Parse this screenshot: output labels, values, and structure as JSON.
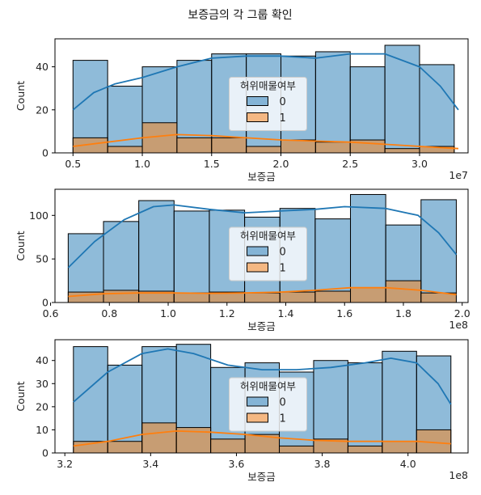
{
  "figure": {
    "suptitle": "보증금의 각 그룹 확인"
  },
  "chart_data": [
    {
      "type": "bar",
      "subtype": "histogram-with-kde",
      "xlabel": "보증금",
      "ylabel": "Count",
      "x_offset_label": "1e7",
      "bin_edges": [
        0.5,
        0.75,
        1.0,
        1.25,
        1.5,
        1.75,
        2.0,
        2.25,
        2.5,
        2.75,
        3.0,
        3.25
      ],
      "xlim": [
        0.37,
        3.35
      ],
      "ylim": [
        0,
        53
      ],
      "xticks": [
        0.5,
        1.0,
        1.5,
        2.0,
        2.5,
        3.0
      ],
      "xtick_labels": [
        "0.5",
        "1.0",
        "1.5",
        "2.0",
        "2.5",
        "3.0"
      ],
      "yticks": [
        0,
        20,
        40
      ],
      "yticklabels": [
        "0",
        "20",
        "40"
      ],
      "legend": {
        "title": "허위매물여부",
        "position": "center",
        "entries": [
          "0",
          "1"
        ]
      },
      "series": [
        {
          "name": "0",
          "color": "#1f77b4",
          "values": [
            43,
            31,
            40,
            43,
            46,
            46,
            45,
            47,
            40,
            50,
            41
          ],
          "kde": [
            [
              0.5,
              20
            ],
            [
              0.65,
              28
            ],
            [
              0.8,
              32
            ],
            [
              1.0,
              35
            ],
            [
              1.25,
              40
            ],
            [
              1.5,
              44
            ],
            [
              1.75,
              45
            ],
            [
              2.0,
              45
            ],
            [
              2.25,
              44
            ],
            [
              2.5,
              46
            ],
            [
              2.75,
              46
            ],
            [
              3.0,
              40
            ],
            [
              3.15,
              31
            ],
            [
              3.28,
              20
            ]
          ]
        },
        {
          "name": "1",
          "color": "#ff7f0e",
          "values": [
            7,
            3,
            14,
            7,
            7,
            3,
            6,
            5,
            6,
            2,
            3
          ],
          "kde": [
            [
              0.5,
              3
            ],
            [
              0.75,
              5
            ],
            [
              1.0,
              7
            ],
            [
              1.25,
              8.5
            ],
            [
              1.5,
              8
            ],
            [
              1.75,
              7
            ],
            [
              2.0,
              6
            ],
            [
              2.25,
              5.5
            ],
            [
              2.5,
              5
            ],
            [
              2.75,
              4
            ],
            [
              3.0,
              3
            ],
            [
              3.28,
              2
            ]
          ]
        }
      ]
    },
    {
      "type": "bar",
      "subtype": "histogram-with-kde",
      "xlabel": "보증금",
      "ylabel": "Count",
      "x_offset_label": "1e8",
      "bin_edges": [
        0.66,
        0.78,
        0.9,
        1.02,
        1.14,
        1.26,
        1.38,
        1.5,
        1.62,
        1.74,
        1.86,
        1.98
      ],
      "xlim": [
        0.615,
        2.02
      ],
      "ylim": [
        0,
        130
      ],
      "xticks": [
        0.6,
        0.8,
        1.0,
        1.2,
        1.4,
        1.6,
        1.8,
        2.0
      ],
      "xtick_labels": [
        "0.6",
        "0.8",
        "1.0",
        "1.2",
        "1.4",
        "1.6",
        "1.8",
        "2.0"
      ],
      "yticks": [
        0,
        50,
        100
      ],
      "yticklabels": [
        "0",
        "50",
        "100"
      ],
      "legend": {
        "title": "허위매물여부",
        "position": "center",
        "entries": [
          "0",
          "1"
        ]
      },
      "series": [
        {
          "name": "0",
          "color": "#1f77b4",
          "values": [
            79,
            93,
            117,
            105,
            106,
            98,
            108,
            96,
            124,
            89,
            118
          ],
          "kde": [
            [
              0.66,
              40
            ],
            [
              0.75,
              70
            ],
            [
              0.85,
              95
            ],
            [
              0.95,
              110
            ],
            [
              1.02,
              112
            ],
            [
              1.14,
              107
            ],
            [
              1.26,
              103
            ],
            [
              1.38,
              105
            ],
            [
              1.5,
              107
            ],
            [
              1.6,
              110
            ],
            [
              1.74,
              108
            ],
            [
              1.85,
              100
            ],
            [
              1.92,
              80
            ],
            [
              1.98,
              55
            ]
          ]
        },
        {
          "name": "1",
          "color": "#ff7f0e",
          "values": [
            12,
            14,
            13,
            11,
            12,
            11,
            12,
            13,
            17,
            25,
            11
          ],
          "kde": [
            [
              0.66,
              7
            ],
            [
              0.78,
              10
            ],
            [
              0.9,
              11
            ],
            [
              1.02,
              11
            ],
            [
              1.14,
              10.5
            ],
            [
              1.26,
              11
            ],
            [
              1.38,
              12
            ],
            [
              1.5,
              14
            ],
            [
              1.62,
              17
            ],
            [
              1.74,
              17
            ],
            [
              1.86,
              14
            ],
            [
              1.98,
              9
            ]
          ]
        }
      ]
    },
    {
      "type": "bar",
      "subtype": "histogram-with-kde",
      "xlabel": "보증금",
      "ylabel": "Count",
      "x_offset_label": "1e8",
      "bin_edges": [
        3.22,
        3.3,
        3.38,
        3.46,
        3.54,
        3.62,
        3.7,
        3.78,
        3.86,
        3.94,
        4.02,
        4.1
      ],
      "xlim": [
        3.177,
        4.14
      ],
      "ylim": [
        0,
        49
      ],
      "xticks": [
        3.2,
        3.4,
        3.6,
        3.8,
        4.0
      ],
      "xtick_labels": [
        "3.2",
        "3.4",
        "3.6",
        "3.8",
        "4.0"
      ],
      "yticks": [
        0,
        10,
        20,
        30,
        40
      ],
      "yticklabels": [
        "0",
        "10",
        "20",
        "30",
        "40"
      ],
      "legend": {
        "title": "허위매물여부",
        "position": "center",
        "entries": [
          "0",
          "1"
        ]
      },
      "series": [
        {
          "name": "0",
          "color": "#1f77b4",
          "values": [
            46,
            38,
            46,
            47,
            37,
            39,
            35,
            40,
            39,
            44,
            42
          ],
          "kde": [
            [
              3.22,
              22
            ],
            [
              3.3,
              35
            ],
            [
              3.38,
              43
            ],
            [
              3.44,
              45
            ],
            [
              3.5,
              43
            ],
            [
              3.58,
              38
            ],
            [
              3.66,
              36
            ],
            [
              3.74,
              36
            ],
            [
              3.82,
              37
            ],
            [
              3.9,
              39
            ],
            [
              3.96,
              41
            ],
            [
              4.02,
              39
            ],
            [
              4.07,
              30
            ],
            [
              4.1,
              21
            ]
          ]
        },
        {
          "name": "1",
          "color": "#ff7f0e",
          "values": [
            5,
            5,
            13,
            11,
            6,
            8,
            3,
            6,
            3,
            5,
            10
          ],
          "kde": [
            [
              3.22,
              3
            ],
            [
              3.3,
              5
            ],
            [
              3.38,
              8
            ],
            [
              3.46,
              9.5
            ],
            [
              3.54,
              9
            ],
            [
              3.62,
              8
            ],
            [
              3.7,
              6.5
            ],
            [
              3.78,
              5.5
            ],
            [
              3.86,
              5
            ],
            [
              3.94,
              5
            ],
            [
              4.02,
              5
            ],
            [
              4.1,
              4
            ]
          ]
        }
      ]
    }
  ]
}
